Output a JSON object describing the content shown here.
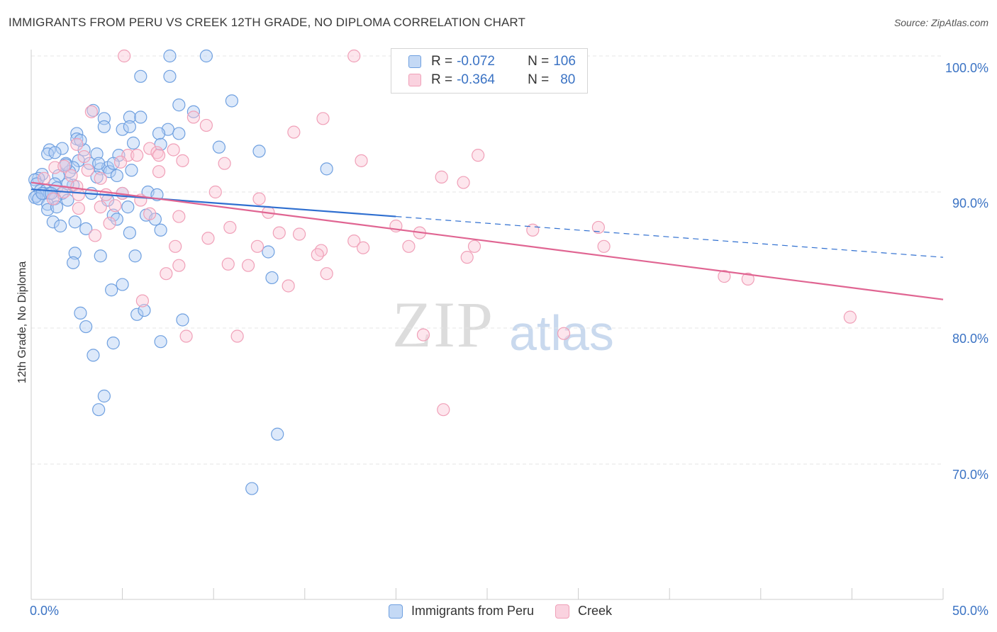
{
  "header": {
    "title": "IMMIGRANTS FROM PERU VS CREEK 12TH GRADE, NO DIPLOMA CORRELATION CHART",
    "source": "Source: ZipAtlas.com"
  },
  "watermark": {
    "zip": "ZIP",
    "atlas": "atlas"
  },
  "legend": {
    "rows": [
      {
        "r_label": "R =",
        "r_value": "-0.072",
        "n_label": "N =",
        "n_value": "106",
        "color": "#6fa0e0"
      },
      {
        "r_label": "R =",
        "r_value": "-0.364",
        "n_label": "N =",
        "n_value": "80",
        "color": "#f0a0b8"
      }
    ]
  },
  "bottom_legend": [
    "Immigrants from Peru",
    "Creek"
  ],
  "colors": {
    "blue": "#6fa0e0",
    "pink": "#f0a0b8",
    "blue_line": "#2f6fd0",
    "pink_line": "#e06592",
    "grid": "#e4e4e4",
    "tick_text": "#3b73c4"
  },
  "chart_data": {
    "type": "scatter",
    "title": "IMMIGRANTS FROM PERU VS CREEK 12TH GRADE, NO DIPLOMA CORRELATION CHART",
    "xlabel": "",
    "ylabel": "12th Grade, No Diploma",
    "xlim": [
      0,
      50
    ],
    "ylim": [
      60,
      104
    ],
    "x_tick_labels": [
      "0.0%",
      "50.0%"
    ],
    "y_ticks": [
      70,
      80,
      90,
      100
    ],
    "y_tick_labels": [
      "70.0%",
      "80.0%",
      "90.0%",
      "100.0%"
    ],
    "grid": true,
    "legend_position": "top-center",
    "series": [
      {
        "name": "Immigrants from Peru",
        "color": "#6fa0e0",
        "r": -0.072,
        "n": 106,
        "trend": {
          "x0": 0,
          "y0": 90.2,
          "x1": 20,
          "y1": 88.2,
          "dash_x1": 50,
          "dash_y1": 85.2
        },
        "points": [
          [
            7.6,
            100
          ],
          [
            9.6,
            100
          ],
          [
            6.0,
            98.5
          ],
          [
            7.6,
            98.5
          ],
          [
            11.0,
            96.7
          ],
          [
            8.1,
            96.4
          ],
          [
            8.9,
            95.9
          ],
          [
            3.4,
            96.0
          ],
          [
            4.0,
            95.4
          ],
          [
            5.4,
            95.5
          ],
          [
            6.0,
            95.5
          ],
          [
            4.0,
            94.8
          ],
          [
            5.0,
            94.6
          ],
          [
            5.4,
            94.8
          ],
          [
            7.5,
            94.6
          ],
          [
            8.1,
            94.3
          ],
          [
            7.0,
            94.3
          ],
          [
            2.5,
            94.3
          ],
          [
            2.5,
            93.9
          ],
          [
            5.6,
            93.6
          ],
          [
            7.1,
            93.5
          ],
          [
            10.3,
            93.3
          ],
          [
            12.5,
            93.0
          ],
          [
            1.0,
            93.1
          ],
          [
            1.7,
            93.2
          ],
          [
            0.9,
            92.8
          ],
          [
            1.3,
            92.9
          ],
          [
            2.9,
            93.1
          ],
          [
            3.6,
            92.8
          ],
          [
            4.8,
            92.7
          ],
          [
            2.6,
            92.3
          ],
          [
            1.9,
            92.1
          ],
          [
            3.2,
            92.1
          ],
          [
            3.8,
            91.7
          ],
          [
            4.2,
            91.8
          ],
          [
            5.5,
            91.6
          ],
          [
            16.2,
            91.7
          ],
          [
            2.3,
            91.8
          ],
          [
            2.1,
            91.5
          ],
          [
            0.6,
            91.3
          ],
          [
            1.5,
            91.2
          ],
          [
            3.6,
            91.1
          ],
          [
            4.3,
            91.5
          ],
          [
            4.7,
            91.2
          ],
          [
            0.4,
            91.0
          ],
          [
            0.2,
            90.9
          ],
          [
            0.3,
            90.6
          ],
          [
            1.3,
            90.6
          ],
          [
            1.4,
            90.3
          ],
          [
            2.3,
            90.5
          ],
          [
            0.5,
            90.1
          ],
          [
            0.8,
            90.1
          ],
          [
            0.7,
            89.9
          ],
          [
            1.0,
            89.9
          ],
          [
            1.7,
            89.9
          ],
          [
            3.3,
            89.9
          ],
          [
            5.0,
            89.9
          ],
          [
            0.3,
            89.7
          ],
          [
            0.2,
            89.6
          ],
          [
            0.4,
            89.5
          ],
          [
            1.3,
            89.5
          ],
          [
            2.0,
            89.4
          ],
          [
            4.2,
            89.4
          ],
          [
            6.4,
            90.0
          ],
          [
            6.9,
            89.8
          ],
          [
            0.9,
            89.1
          ],
          [
            0.9,
            88.7
          ],
          [
            1.4,
            88.9
          ],
          [
            5.3,
            88.9
          ],
          [
            6.3,
            88.3
          ],
          [
            4.5,
            88.3
          ],
          [
            6.8,
            88.0
          ],
          [
            1.2,
            87.8
          ],
          [
            1.6,
            87.5
          ],
          [
            2.4,
            87.8
          ],
          [
            3.0,
            87.3
          ],
          [
            7.1,
            87.2
          ],
          [
            4.7,
            88.0
          ],
          [
            5.4,
            87.0
          ],
          [
            2.4,
            85.5
          ],
          [
            3.8,
            85.3
          ],
          [
            5.7,
            85.3
          ],
          [
            13.0,
            85.6
          ],
          [
            2.3,
            84.8
          ],
          [
            13.2,
            83.7
          ],
          [
            5.0,
            83.2
          ],
          [
            4.4,
            82.8
          ],
          [
            5.8,
            81.0
          ],
          [
            6.2,
            81.3
          ],
          [
            2.7,
            81.1
          ],
          [
            8.3,
            80.6
          ],
          [
            3.0,
            80.1
          ],
          [
            7.1,
            79.0
          ],
          [
            4.5,
            78.9
          ],
          [
            3.4,
            78.0
          ],
          [
            4.0,
            75.0
          ],
          [
            3.7,
            74.0
          ],
          [
            13.5,
            72.2
          ],
          [
            12.1,
            68.2
          ],
          [
            3.7,
            92.1
          ],
          [
            2.7,
            93.8
          ],
          [
            4.5,
            92.1
          ],
          [
            1.9,
            92.0
          ],
          [
            2.0,
            90.6
          ],
          [
            0.6,
            89.9
          ],
          [
            1.1,
            89.9
          ]
        ]
      },
      {
        "name": "Creek",
        "color": "#f0a0b8",
        "r": -0.364,
        "n": 80,
        "trend": {
          "x0": 0,
          "y0": 90.7,
          "x1": 50,
          "y1": 82.1
        },
        "points": [
          [
            5.1,
            100
          ],
          [
            17.7,
            100
          ],
          [
            22.3,
            100
          ],
          [
            3.3,
            95.9
          ],
          [
            8.9,
            95.5
          ],
          [
            16.0,
            95.4
          ],
          [
            9.6,
            94.9
          ],
          [
            14.4,
            94.4
          ],
          [
            2.5,
            93.5
          ],
          [
            6.5,
            93.2
          ],
          [
            7.8,
            93.1
          ],
          [
            5.3,
            92.7
          ],
          [
            5.8,
            92.7
          ],
          [
            6.9,
            92.9
          ],
          [
            24.5,
            92.7
          ],
          [
            7.0,
            92.7
          ],
          [
            2.9,
            92.6
          ],
          [
            4.9,
            92.2
          ],
          [
            8.3,
            92.3
          ],
          [
            10.6,
            92.1
          ],
          [
            18.1,
            92.3
          ],
          [
            22.5,
            91.1
          ],
          [
            23.7,
            90.7
          ],
          [
            3.1,
            91.6
          ],
          [
            1.3,
            91.8
          ],
          [
            7.0,
            91.5
          ],
          [
            2.2,
            91.2
          ],
          [
            3.8,
            91.0
          ],
          [
            2.5,
            90.4
          ],
          [
            10.1,
            90.0
          ],
          [
            1.2,
            89.5
          ],
          [
            5.0,
            89.9
          ],
          [
            4.1,
            89.8
          ],
          [
            6.0,
            89.4
          ],
          [
            12.5,
            89.5
          ],
          [
            2.6,
            88.8
          ],
          [
            3.8,
            88.9
          ],
          [
            4.6,
            89.0
          ],
          [
            4.3,
            87.7
          ],
          [
            6.5,
            88.4
          ],
          [
            8.1,
            88.2
          ],
          [
            10.9,
            87.4
          ],
          [
            13.0,
            88.5
          ],
          [
            13.6,
            87.0
          ],
          [
            14.7,
            86.9
          ],
          [
            3.5,
            86.8
          ],
          [
            9.7,
            86.6
          ],
          [
            17.7,
            86.4
          ],
          [
            21.3,
            87.0
          ],
          [
            27.5,
            87.2
          ],
          [
            31.1,
            87.4
          ],
          [
            12.4,
            86.0
          ],
          [
            18.2,
            85.9
          ],
          [
            15.9,
            85.7
          ],
          [
            7.9,
            86.0
          ],
          [
            20.7,
            86.0
          ],
          [
            24.3,
            86.0
          ],
          [
            31.4,
            86.0
          ],
          [
            15.7,
            85.4
          ],
          [
            23.9,
            85.2
          ],
          [
            10.8,
            84.7
          ],
          [
            11.9,
            84.6
          ],
          [
            8.1,
            84.6
          ],
          [
            7.4,
            84.0
          ],
          [
            16.2,
            84.0
          ],
          [
            38.0,
            83.8
          ],
          [
            39.3,
            83.6
          ],
          [
            14.1,
            83.1
          ],
          [
            6.1,
            82.0
          ],
          [
            44.9,
            80.8
          ],
          [
            8.5,
            79.4
          ],
          [
            11.3,
            79.4
          ],
          [
            21.5,
            79.5
          ],
          [
            29.2,
            79.6
          ],
          [
            22.6,
            74.0
          ],
          [
            0.7,
            91.0
          ],
          [
            1.8,
            90.0
          ],
          [
            1.8,
            91.9
          ],
          [
            2.6,
            89.8
          ],
          [
            20.0,
            87.5
          ]
        ]
      }
    ]
  }
}
